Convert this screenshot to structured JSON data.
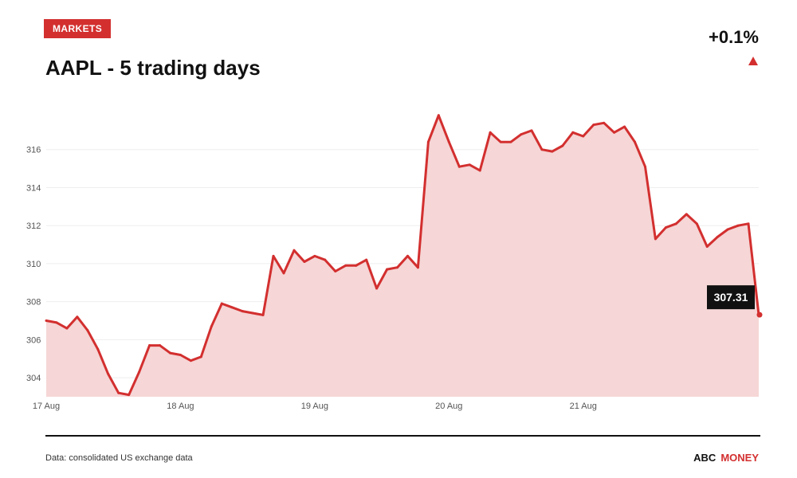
{
  "header": {
    "badge": "MARKETS",
    "title": "AAPL - 5 trading days",
    "change": "+0.1%"
  },
  "footer": {
    "source": "Data: consolidated US exchange data",
    "brand_primary": "ABC",
    "brand_secondary": "MONEY"
  },
  "colors": {
    "accent": "#d32f2f",
    "fill": "#f6d6d6"
  },
  "chart_data": {
    "type": "area",
    "ylim": [
      303,
      318
    ],
    "yticks": [
      304,
      306,
      308,
      310,
      312,
      314,
      316
    ],
    "grid": true,
    "xticks": [
      {
        "label": "17 Aug",
        "index": 0
      },
      {
        "label": "18 Aug",
        "index": 13
      },
      {
        "label": "19 Aug",
        "index": 26
      },
      {
        "label": "20 Aug",
        "index": 39
      },
      {
        "label": "21 Aug",
        "index": 52
      }
    ],
    "values": [
      307.0,
      306.9,
      306.6,
      307.2,
      306.5,
      305.5,
      304.2,
      303.2,
      303.1,
      304.3,
      305.7,
      305.7,
      305.3,
      305.2,
      304.9,
      305.1,
      306.7,
      307.9,
      307.7,
      307.5,
      307.4,
      307.3,
      310.4,
      309.5,
      310.7,
      310.1,
      310.4,
      310.2,
      309.6,
      309.9,
      309.9,
      310.2,
      308.7,
      309.7,
      309.8,
      310.4,
      309.8,
      316.4,
      317.8,
      316.4,
      315.1,
      315.2,
      314.9,
      316.9,
      316.4,
      316.4,
      316.8,
      317.0,
      316.0,
      315.9,
      316.2,
      316.9,
      316.7,
      317.3,
      317.4,
      316.9,
      317.2,
      316.4,
      315.1,
      311.3,
      311.9,
      312.1,
      312.6,
      312.1,
      310.9,
      311.4,
      311.8,
      312.0,
      312.1,
      307.31
    ],
    "last_label": "307.31"
  }
}
